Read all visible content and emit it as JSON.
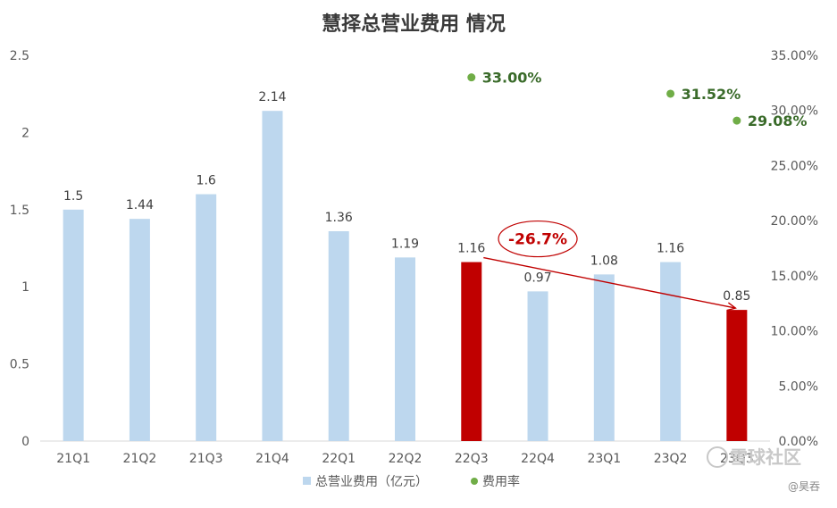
{
  "chart_data": {
    "type": "bar",
    "title": "慧择总营业费用 情况",
    "categories": [
      "21Q1",
      "21Q2",
      "21Q3",
      "21Q4",
      "22Q1",
      "22Q2",
      "22Q3",
      "22Q4",
      "23Q1",
      "23Q2",
      "23Q3"
    ],
    "series": [
      {
        "name": "总营业费用（亿元）",
        "axis": "left",
        "values": [
          1.5,
          1.44,
          1.6,
          2.14,
          1.36,
          1.19,
          1.16,
          0.97,
          1.08,
          1.16,
          0.85
        ],
        "labels": [
          "1.5",
          "1.44",
          "1.6",
          "2.14",
          "1.36",
          "1.19",
          "1.16",
          "0.97",
          "1.08",
          "1.16",
          "0.85"
        ],
        "color": "#bdd7ee",
        "highlight_color": "#c00000",
        "highlight_categories": [
          "22Q3",
          "23Q3"
        ]
      },
      {
        "name": "费用率",
        "axis": "right",
        "type": "scatter",
        "points": [
          {
            "category": "22Q3",
            "value": 0.33,
            "label": "33.00%"
          },
          {
            "category": "23Q2",
            "value": 0.3152,
            "label": "31.52%"
          },
          {
            "category": "23Q3",
            "value": 0.2908,
            "label": "29.08%"
          }
        ],
        "color": "#70ad47"
      }
    ],
    "y_left": {
      "range": [
        0,
        2.5
      ],
      "ticks": [
        "0",
        "0.5",
        "1",
        "1.5",
        "2",
        "2.5"
      ]
    },
    "y_right": {
      "range": [
        0,
        0.35
      ],
      "ticks": [
        "0.00%",
        "5.00%",
        "10.00%",
        "15.00%",
        "20.00%",
        "25.00%",
        "30.00%",
        "35.00%"
      ]
    },
    "annotation": {
      "text": "-26.7%",
      "from": "22Q3",
      "to": "23Q3",
      "color": "#c00000"
    },
    "legend": {
      "placement": "bottom",
      "items": [
        "总营业费用（亿元）",
        "费用率"
      ]
    },
    "grid": false
  },
  "watermark": {
    "text": "雪球社区",
    "handle": "@昊吞"
  }
}
